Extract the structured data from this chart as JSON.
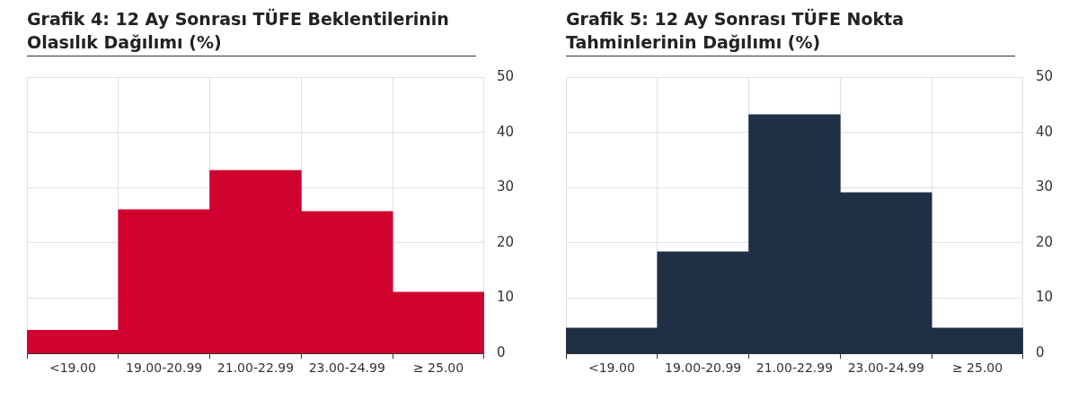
{
  "chart_data": [
    {
      "type": "bar",
      "title": "Grafik 4: 12 Ay Sonrası TÜFE Beklentilerinin Olasılık Dağılımı (%)",
      "categories": [
        "<19.00",
        "19.00-20.99",
        "21.00-22.99",
        "23.00-24.99",
        "≥ 25.00"
      ],
      "values": [
        4.2,
        26.0,
        33.1,
        25.7,
        11.1
      ],
      "color": "#d0002f",
      "ylim": [
        0,
        50
      ],
      "yticks": [
        0,
        10,
        20,
        30,
        40,
        50
      ],
      "grid": true
    },
    {
      "type": "bar",
      "title": "Grafik 5: 12 Ay Sonrası TÜFE Nokta Tahminlerinin Dağılımı (%)",
      "categories": [
        "<19.00",
        "19.00-20.99",
        "21.00-22.99",
        "23.00-24.99",
        "≥ 25.00"
      ],
      "values": [
        4.6,
        18.4,
        43.2,
        29.1,
        4.6
      ],
      "color": "#1f3045",
      "ylim": [
        0,
        50
      ],
      "yticks": [
        0,
        10,
        20,
        30,
        40,
        50
      ],
      "grid": true
    }
  ]
}
